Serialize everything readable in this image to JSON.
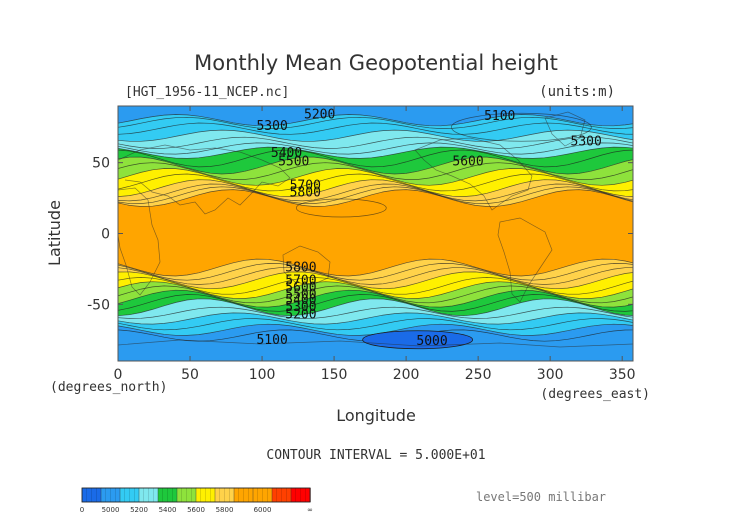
{
  "chart_data": {
    "type": "heatmap",
    "title": "Monthly Mean Geopotential height",
    "file_label": "[HGT_1956-11_NCEP.nc]",
    "units_label": "(units:m)",
    "xlabel": "Longitude",
    "ylabel": "Latitude",
    "x_unit_label": "(degrees_east)",
    "y_unit_label": "(degrees_north)",
    "xlim": [
      0,
      357.5
    ],
    "ylim": [
      -90,
      90
    ],
    "xticks": [
      0,
      50,
      100,
      150,
      200,
      250,
      300,
      350
    ],
    "yticks": [
      50,
      0,
      -50
    ],
    "contour_interval_text": "CONTOUR INTERVAL = 5.000E+01",
    "level_text": "level=500 millibar",
    "colorbar": {
      "ticks": [
        "0",
        "5000",
        "5200",
        "5400",
        "5600",
        "5800",
        "6000",
        "∞"
      ],
      "colors": [
        "#1a6be8",
        "#2b9bf0",
        "#33cbf3",
        "#7fe8ee",
        "#1ec83c",
        "#8ee23c",
        "#fff000",
        "#ffd24a",
        "#ffa500",
        "#ffa500",
        "#ff4000",
        "#ff0000"
      ]
    },
    "bands": [
      {
        "lat_from": 90,
        "lat_to": 80,
        "value": 5150,
        "color": "#2b9bf0"
      },
      {
        "lat_from": 80,
        "lat_to": 69,
        "value": 5250,
        "color": "#33cbf3"
      },
      {
        "lat_from": 69,
        "lat_to": 57,
        "value": 5450,
        "color": "#7fe8ee"
      },
      {
        "lat_from": 57,
        "lat_to": 48,
        "value": 5550,
        "color": "#1ec83c"
      },
      {
        "lat_from": 48,
        "lat_to": 40,
        "value": 5650,
        "color": "#8ee23c"
      },
      {
        "lat_from": 40,
        "lat_to": 32,
        "value": 5750,
        "color": "#fff000"
      },
      {
        "lat_from": 32,
        "lat_to": 25,
        "value": 5820,
        "color": "#ffd24a"
      },
      {
        "lat_from": 25,
        "lat_to": -24,
        "value": 5880,
        "color": "#ffa500"
      },
      {
        "lat_from": -24,
        "lat_to": -33,
        "value": 5820,
        "color": "#ffd24a"
      },
      {
        "lat_from": -33,
        "lat_to": -40,
        "value": 5750,
        "color": "#fff000"
      },
      {
        "lat_from": -40,
        "lat_to": -46,
        "value": 5650,
        "color": "#8ee23c"
      },
      {
        "lat_from": -46,
        "lat_to": -52,
        "value": 5550,
        "color": "#1ec83c"
      },
      {
        "lat_from": -52,
        "lat_to": -60,
        "value": 5450,
        "color": "#7fe8ee"
      },
      {
        "lat_from": -60,
        "lat_to": -68,
        "value": 5250,
        "color": "#33cbf3"
      },
      {
        "lat_from": -68,
        "lat_to": -90,
        "value": 5150,
        "color": "#2b9bf0"
      }
    ],
    "min_region": {
      "center_lon": 208,
      "center_lat": -75,
      "label": "5000"
    },
    "contour_labels": [
      {
        "text": "5300",
        "lon": 107,
        "lat": 76
      },
      {
        "text": "5200",
        "lon": 140,
        "lat": 84
      },
      {
        "text": "5100",
        "lon": 265,
        "lat": 83
      },
      {
        "text": "5300",
        "lon": 325,
        "lat": 65
      },
      {
        "text": "5400",
        "lon": 117,
        "lat": 57
      },
      {
        "text": "5500",
        "lon": 122,
        "lat": 51
      },
      {
        "text": "5600",
        "lon": 243,
        "lat": 51
      },
      {
        "text": "5700",
        "lon": 130,
        "lat": 34
      },
      {
        "text": "5800",
        "lon": 130,
        "lat": 29
      },
      {
        "text": "5800",
        "lon": 127,
        "lat": -24
      },
      {
        "text": "5700",
        "lon": 127,
        "lat": -33
      },
      {
        "text": "5600",
        "lon": 127,
        "lat": -38
      },
      {
        "text": "5500",
        "lon": 127,
        "lat": -43
      },
      {
        "text": "5400",
        "lon": 127,
        "lat": -47
      },
      {
        "text": "5300",
        "lon": 127,
        "lat": -52
      },
      {
        "text": "5200",
        "lon": 127,
        "lat": -57
      },
      {
        "text": "5100",
        "lon": 107,
        "lat": -75
      },
      {
        "text": "5000",
        "lon": 218,
        "lat": -76
      }
    ]
  }
}
